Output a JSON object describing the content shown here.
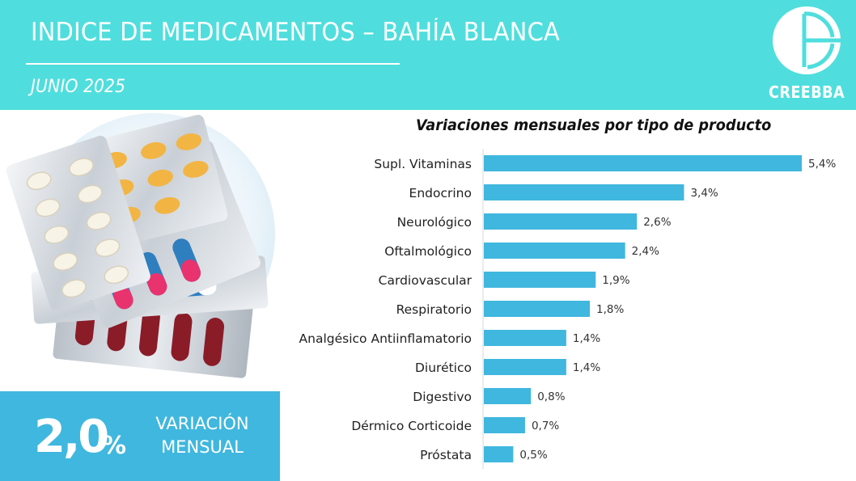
{
  "header": {
    "title": "INDICE DE MEDICAMENTOS – BAHÍA BLANCA",
    "subtitle": "JUNIO 2025",
    "logo_text": "CREEBBA"
  },
  "kpi": {
    "value": "2,0",
    "unit": "%",
    "label_line1": "VARIACIÓN",
    "label_line2": "MENSUAL"
  },
  "colors": {
    "header_bg": "#4fdedd",
    "bar": "#40b7de",
    "kpi_bg": "#40b7de"
  },
  "chart_data": {
    "type": "bar",
    "orientation": "horizontal",
    "title": "Variaciones mensuales por tipo de producto",
    "categories": [
      "Supl. Vitaminas",
      "Endocrino",
      "Neurológico",
      "Oftalmológico",
      "Cardiovascular",
      "Respiratorio",
      "Analgésico Antiinflamatorio",
      "Diurético",
      "Digestivo",
      "Dérmico Corticoide",
      "Próstata"
    ],
    "values": [
      5.4,
      3.4,
      2.6,
      2.4,
      1.9,
      1.8,
      1.4,
      1.4,
      0.8,
      0.7,
      0.5
    ],
    "value_labels": [
      "5,4%",
      "3,4%",
      "2,6%",
      "2,4%",
      "1,9%",
      "1,8%",
      "1,4%",
      "1,4%",
      "0,8%",
      "0,7%",
      "0,5%"
    ],
    "xlim": [
      0,
      5.4
    ],
    "grid": false,
    "legend": "none"
  }
}
